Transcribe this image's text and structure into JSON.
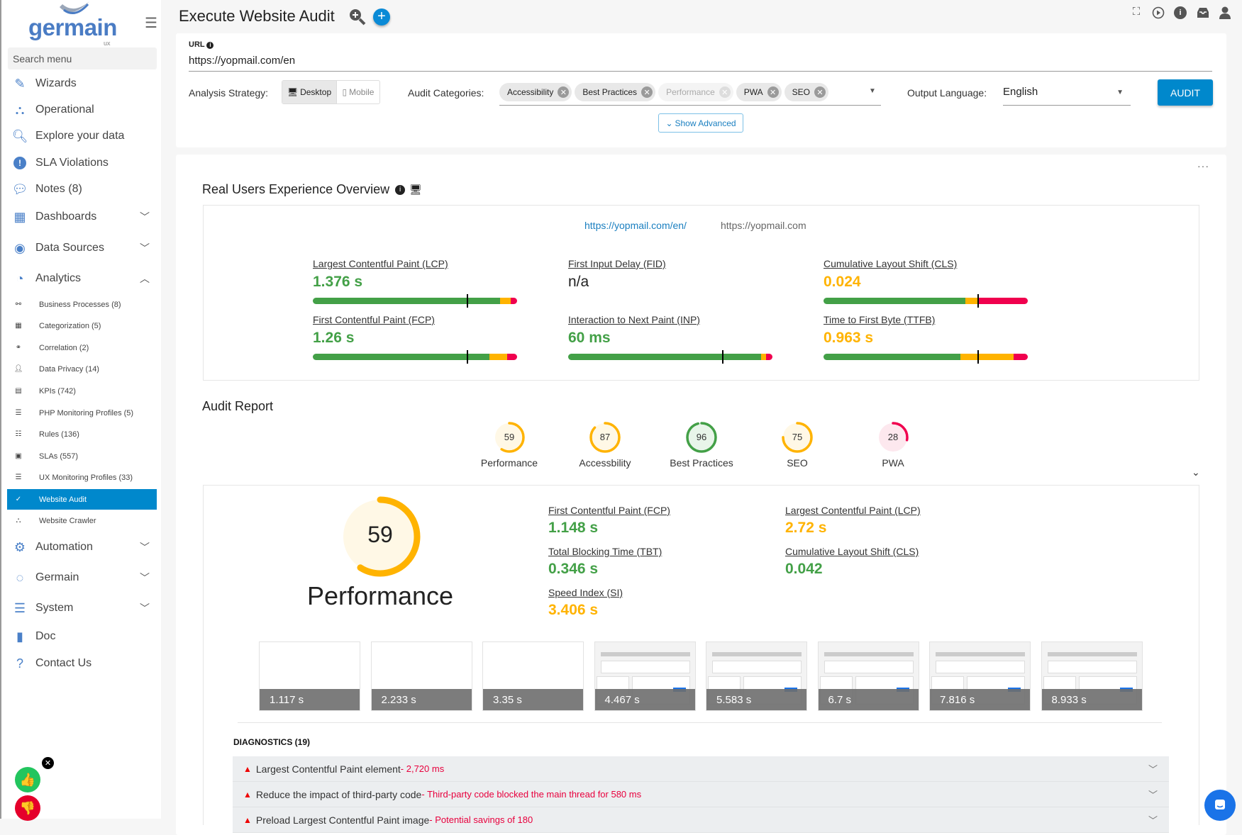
{
  "sidebar": {
    "logo": "germain",
    "logo_sub": "ux",
    "search_placeholder": "Search menu",
    "items": [
      {
        "label": "Wizards",
        "icon": "pencil-icon"
      },
      {
        "label": "Operational",
        "icon": "sitemap-icon"
      },
      {
        "label": "Explore your data",
        "icon": "search-icon"
      },
      {
        "label": "SLA Violations",
        "icon": "alert-icon"
      },
      {
        "label": "Notes (8)",
        "icon": "comment-icon"
      },
      {
        "label": "Dashboards",
        "icon": "dashboard-icon",
        "expandable": true
      },
      {
        "label": "Data Sources",
        "icon": "database-icon",
        "expandable": true
      },
      {
        "label": "Analytics",
        "icon": "analytics-icon",
        "expanded": true
      }
    ],
    "sub_items": [
      {
        "label": "Business Processes (8)",
        "icon": "process-icon"
      },
      {
        "label": "Categorization (5)",
        "icon": "grid-icon"
      },
      {
        "label": "Correlation (2)",
        "icon": "link-icon"
      },
      {
        "label": "Data Privacy (14)",
        "icon": "user-lock-icon"
      },
      {
        "label": "KPIs (742)",
        "icon": "list-icon"
      },
      {
        "label": "PHP Monitoring Profiles (5)",
        "icon": "sliders-icon"
      },
      {
        "label": "Rules (136)",
        "icon": "checklist-icon"
      },
      {
        "label": "SLAs (557)",
        "icon": "clipboard-icon"
      },
      {
        "label": "UX Monitoring Profiles (33)",
        "icon": "sliders-icon"
      },
      {
        "label": "Website Audit",
        "icon": "check-circle-icon",
        "active": true
      },
      {
        "label": "Website Crawler",
        "icon": "sitemap-icon"
      }
    ],
    "bottom_items": [
      {
        "label": "Automation",
        "icon": "gear-icon"
      },
      {
        "label": "Germain",
        "icon": "circle-dots-icon"
      },
      {
        "label": "System",
        "icon": "sliders-icon"
      },
      {
        "label": "Doc",
        "icon": "book-icon"
      },
      {
        "label": "Contact Us",
        "icon": "question-icon"
      }
    ]
  },
  "header": {
    "title": "Execute Website Audit"
  },
  "form": {
    "url_label": "URL",
    "url_value": "https://yopmail.com/en",
    "strategy_label": "Analysis Strategy:",
    "strategy_options": [
      "Desktop",
      "Mobile"
    ],
    "strategy_selected": "Desktop",
    "categories_label": "Audit Categories:",
    "categories": [
      {
        "label": "Accessibility"
      },
      {
        "label": "Best Practices"
      },
      {
        "label": "Performance",
        "disabled": true
      },
      {
        "label": "PWA"
      },
      {
        "label": "SEO"
      }
    ],
    "language_label": "Output Language:",
    "language_value": "English",
    "audit_button": "AUDIT",
    "show_advanced": "Show Advanced"
  },
  "rux": {
    "title": "Real Users Experience Overview",
    "links": [
      "https://yopmail.com/en/",
      "https://yopmail.com"
    ],
    "metrics": [
      {
        "label": "Largest Contentful Paint (LCP)",
        "value": "1.376 s",
        "status": "good",
        "dist": [
          91.5,
          5.5,
          3
        ],
        "p75": 75.5
      },
      {
        "label": "First Input Delay (FID)",
        "value": "n/a",
        "status": "none"
      },
      {
        "label": "Cumulative Layout Shift (CLS)",
        "value": "0.024",
        "status": "average",
        "dist": [
          69.5,
          6,
          24.5
        ],
        "p75": 75.5
      },
      {
        "label": "First Contentful Paint (FCP)",
        "value": "1.26 s",
        "status": "good",
        "dist": [
          86.5,
          8.8,
          4.7
        ],
        "p75": 75.5
      },
      {
        "label": "Interaction to Next Paint (INP)",
        "value": "60 ms",
        "status": "good",
        "dist": [
          94.3,
          2.6,
          3.1
        ],
        "p75": 75.5
      },
      {
        "label": "Time to First Byte (TTFB)",
        "value": "0.963 s",
        "status": "average",
        "dist": [
          67,
          26,
          7
        ],
        "p75": 75.5
      }
    ]
  },
  "audit": {
    "title": "Audit Report",
    "scores": [
      {
        "label": "Performance",
        "value": 59
      },
      {
        "label": "Accessbility",
        "value": 87
      },
      {
        "label": "Best Practices",
        "value": 96
      },
      {
        "label": "SEO",
        "value": 75
      },
      {
        "label": "PWA",
        "value": 28
      }
    ],
    "performance": {
      "score": 59,
      "label": "Performance",
      "metrics": [
        {
          "label": "First Contentful Paint (FCP)",
          "value": "1.148 s",
          "status": "good"
        },
        {
          "label": "Largest Contentful Paint (LCP)",
          "value": "2.72 s",
          "status": "average"
        },
        {
          "label": "Total Blocking Time (TBT)",
          "value": "0.346 s",
          "status": "good"
        },
        {
          "label": "Cumulative Layout Shift (CLS)",
          "value": "0.042",
          "status": "good"
        },
        {
          "label": "Speed Index (SI)",
          "value": "3.406 s",
          "status": "average"
        }
      ]
    },
    "filmstrip": [
      "1.117 s",
      "2.233 s",
      "3.35 s",
      "4.467 s",
      "5.583 s",
      "6.7 s",
      "7.816 s",
      "8.933 s"
    ],
    "filmstrip_loaded_from": 3,
    "diagnostics_title": "DIAGNOSTICS (19)",
    "diagnostics": [
      {
        "title": "Largest Contentful Paint element",
        "detail": " - 2,720 ms"
      },
      {
        "title": "Reduce the impact of third-party code",
        "detail": " - Third-party code blocked the main thread for 580 ms"
      },
      {
        "title": "Preload Largest Contentful Paint image",
        "detail": " - Potential savings of 180"
      }
    ]
  },
  "colors": {
    "good": "#43a047",
    "average": "#ffb300",
    "poor": "#f0004e",
    "accent": "#0088cc"
  }
}
